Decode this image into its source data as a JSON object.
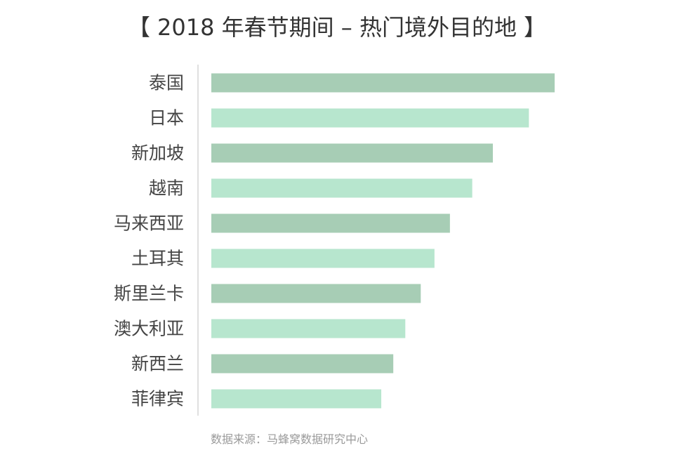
{
  "title": "【 2018 年春节期间 – 热门境外目的地 】",
  "source": "数据来源：马蜂窝数据研究中心",
  "colors": {
    "bar_dark": "#a7cdb5",
    "bar_light": "#b7e6ce",
    "axis": "#d6d6d6",
    "label": "#444444"
  },
  "chart_data": {
    "type": "bar",
    "orientation": "horizontal",
    "title": "【 2018 年春节期间 – 热门境外目的地 】",
    "categories": [
      "泰国",
      "日本",
      "新加坡",
      "越南",
      "马来西亚",
      "土耳其",
      "斯里兰卡",
      "澳大利亚",
      "新西兰",
      "菲律宾"
    ],
    "values": [
      100,
      92.5,
      82,
      76,
      69.5,
      65,
      61,
      56.5,
      53,
      49.5
    ],
    "xlim": [
      0,
      100
    ],
    "grid": false,
    "xaxis_visible": false,
    "legend": "none"
  }
}
